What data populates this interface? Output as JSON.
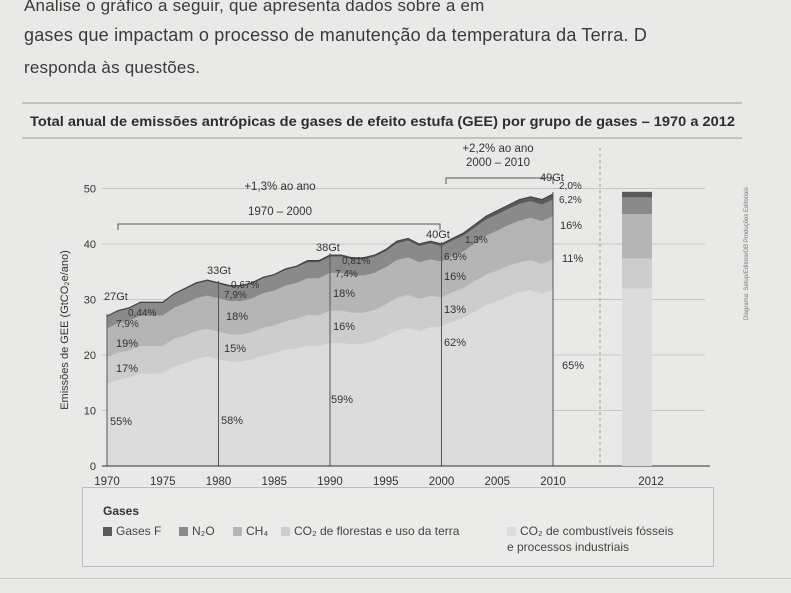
{
  "question": {
    "line1": "Analise o gráfico a seguir, que apresenta dados sobre a em",
    "line2": "gases que impactam o processo de manutenção da temperatura da Terra. D",
    "line3": "responda às questões."
  },
  "side_credit": "Diagrama: Setup/Editora/OB Produções Editoriais",
  "colors": {
    "gases_f": "#5a5a5a",
    "n2o": "#8a8a8a",
    "ch4": "#b5b5b5",
    "co2_forestry": "#cdcdcd",
    "co2_fossil": "#dcdcdc",
    "line": "#444444"
  },
  "chart_data": {
    "type": "area",
    "title": "Total anual de emissões antrópicas de gases de efeito estufa (GEE) por grupo de gases – 1970 a 2012",
    "ylabel": "Emissões de GEE (GtCO₂e/ano)",
    "xlabel": "",
    "ylim": [
      0,
      55
    ],
    "yticks": [
      "0",
      "10",
      "20",
      "30",
      "40",
      "50"
    ],
    "xticks": [
      "1970",
      "1975",
      "1980",
      "1985",
      "1990",
      "1995",
      "2000",
      "2005",
      "2010",
      "2012"
    ],
    "x": [
      1970,
      1971,
      1972,
      1973,
      1974,
      1975,
      1976,
      1977,
      1978,
      1979,
      1980,
      1981,
      1982,
      1983,
      1984,
      1985,
      1986,
      1987,
      1988,
      1989,
      1990,
      1991,
      1992,
      1993,
      1994,
      1995,
      1996,
      1997,
      1998,
      1999,
      2000,
      2001,
      2002,
      2003,
      2004,
      2005,
      2006,
      2007,
      2008,
      2009,
      2010
    ],
    "total": [
      27,
      28,
      28.5,
      29.5,
      29.5,
      29.5,
      31,
      32,
      33,
      33.5,
      33,
      32.5,
      32.5,
      33,
      34,
      34.5,
      35.5,
      36,
      37,
      37,
      38,
      38,
      37.5,
      37.5,
      38,
      39,
      40.5,
      41,
      40,
      40.5,
      40,
      41,
      42,
      43.5,
      45,
      46,
      47,
      48,
      48.5,
      48,
      49
    ],
    "series": [
      {
        "name": "Gases F",
        "values": [
          0.1,
          0.1,
          0.1,
          0.1,
          0.1,
          0.1,
          0.1,
          0.2,
          0.2,
          0.2,
          0.2,
          0.2,
          0.2,
          0.2,
          0.2,
          0.2,
          0.2,
          0.2,
          0.3,
          0.3,
          0.3,
          0.3,
          0.3,
          0.3,
          0.3,
          0.3,
          0.4,
          0.4,
          0.4,
          0.4,
          0.4,
          0.4,
          0.5,
          0.5,
          0.6,
          0.7,
          0.7,
          0.8,
          0.8,
          0.9,
          1.0
        ]
      },
      {
        "name": "N₂O",
        "values": [
          2.1,
          2.2,
          2.2,
          2.3,
          2.3,
          2.3,
          2.4,
          2.5,
          2.6,
          2.6,
          2.6,
          2.6,
          2.6,
          2.6,
          2.7,
          2.7,
          2.8,
          2.8,
          2.9,
          2.9,
          2.9,
          2.9,
          2.9,
          2.9,
          2.9,
          2.9,
          3.0,
          3.0,
          2.9,
          2.9,
          2.8,
          2.8,
          2.8,
          2.9,
          2.9,
          2.9,
          2.9,
          3.0,
          3.0,
          3.0,
          3.0
        ]
      },
      {
        "name": "CH₄",
        "values": [
          5.2,
          5.3,
          5.4,
          5.5,
          5.5,
          5.5,
          5.6,
          5.8,
          5.9,
          6.0,
          6.0,
          6.0,
          6.0,
          6.1,
          6.2,
          6.3,
          6.4,
          6.5,
          6.6,
          6.7,
          6.8,
          6.8,
          6.7,
          6.7,
          6.7,
          6.7,
          6.8,
          6.8,
          6.6,
          6.6,
          6.4,
          6.5,
          6.6,
          6.8,
          7.0,
          7.2,
          7.3,
          7.5,
          7.6,
          7.7,
          7.8
        ]
      },
      {
        "name": "CO₂ de florestas e uso da terra",
        "values": [
          4.8,
          4.9,
          4.9,
          5.0,
          5.0,
          4.9,
          5.0,
          5.0,
          5.0,
          5.0,
          5.0,
          4.9,
          4.9,
          4.9,
          5.0,
          5.0,
          5.2,
          5.3,
          5.5,
          5.5,
          5.9,
          5.8,
          5.7,
          5.6,
          5.6,
          5.6,
          5.9,
          6.0,
          5.8,
          5.6,
          5.2,
          5.3,
          5.4,
          5.5,
          5.5,
          5.5,
          5.5,
          5.4,
          5.4,
          5.4,
          5.4
        ]
      },
      {
        "name": "CO₂ de combustíveis fósseis e processos industriais",
        "values": [
          14.8,
          15.5,
          15.9,
          16.6,
          16.6,
          16.7,
          17.9,
          18.5,
          19.3,
          19.7,
          19.2,
          18.8,
          18.8,
          19.2,
          19.9,
          20.3,
          20.9,
          21.2,
          21.7,
          21.6,
          22.1,
          22.2,
          21.9,
          22.0,
          22.5,
          23.5,
          24.4,
          24.8,
          24.3,
          25.0,
          25.2,
          26.0,
          26.7,
          27.8,
          29.0,
          29.7,
          30.6,
          31.3,
          31.7,
          31.0,
          31.8
        ]
      }
    ],
    "bars_2012": {
      "label": "2012",
      "segments": [
        {
          "name": "CO₂ de combustíveis fósseis e processos industriais",
          "value": 32.0
        },
        {
          "name": "CO₂ de florestas e uso da terra",
          "value": 5.4
        },
        {
          "name": "CH₄",
          "value": 8.0
        },
        {
          "name": "N₂O",
          "value": 3.0
        },
        {
          "name": "Gases F",
          "value": 1.0
        }
      ]
    },
    "totals_labels": [
      "27Gt",
      "33Gt",
      "38Gt",
      "40Gt",
      "49Gt"
    ],
    "growth_annotations": [
      {
        "rate": "+1,3% ao ano",
        "period": "1970 – 2000"
      },
      {
        "rate": "+2,2% ao ano",
        "period": "2000 – 2010"
      }
    ],
    "share_labels": {
      "1970": [
        "0,44%",
        "7,9%",
        "19%",
        "17%",
        "55%"
      ],
      "1980": [
        "0,67%",
        "7,9%",
        "18%",
        "15%",
        "58%"
      ],
      "1990": [
        "0,81%",
        "7,4%",
        "18%",
        "16%",
        "59%"
      ],
      "2000": [
        "1,3%",
        "6,9%",
        "16%",
        "13%",
        "62%"
      ],
      "2010": [
        "2,0%",
        "6,2%",
        "16%",
        "11%",
        "65%"
      ]
    }
  },
  "legend": {
    "title": "Gases",
    "items": [
      "Gases F",
      "N₂O",
      "CH₄",
      "CO₂ de florestas e uso da terra",
      "CO₂ de combustíveis fósseis",
      "e processos industriais"
    ]
  }
}
